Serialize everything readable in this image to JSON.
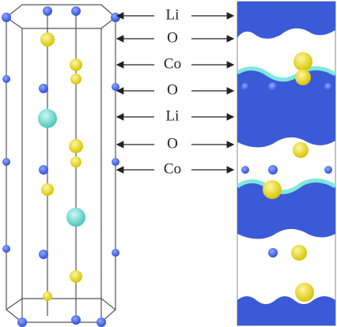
{
  "labels": [
    "Li",
    "O",
    "Co",
    "O",
    "Li",
    "O",
    "Co"
  ]
}
